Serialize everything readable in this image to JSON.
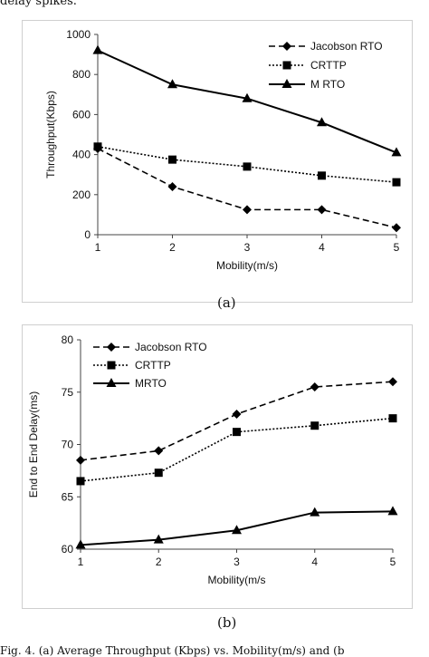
{
  "page": {
    "top_text": "delay spikes.",
    "figure_a_label": "(a)",
    "figure_b_label": "(b)",
    "caption": "Fig. 4. (a) Average Throughput (Kbps) vs. Mobility(m/s) and (b"
  },
  "chart_data": [
    {
      "type": "line",
      "xlabel": "Mobility(m/s)",
      "ylabel": "Throughput(Kbps)",
      "x": [
        1,
        2,
        3,
        4,
        5
      ],
      "xlim": [
        1,
        5
      ],
      "ylim": [
        0,
        1000
      ],
      "yticks": [
        0,
        200,
        400,
        600,
        800,
        1000
      ],
      "xticks": [
        1,
        2,
        3,
        4,
        5
      ],
      "grid": false,
      "legend_position": "top-right",
      "series": [
        {
          "name": "Jacobson RTO",
          "values": [
            430,
            240,
            125,
            125,
            35
          ],
          "style": "dashed",
          "marker": "diamond",
          "color": "#000000"
        },
        {
          "name": "CRTTP",
          "values": [
            440,
            375,
            340,
            295,
            262
          ],
          "style": "dotted",
          "marker": "square",
          "color": "#000000"
        },
        {
          "name": "M RTO",
          "values": [
            920,
            750,
            680,
            560,
            410
          ],
          "style": "solid",
          "marker": "triangle",
          "color": "#000000"
        }
      ]
    },
    {
      "type": "line",
      "xlabel": "Mobility(m/s",
      "ylabel": "End to End Delay(ms)",
      "x": [
        1,
        2,
        3,
        4,
        5
      ],
      "xlim": [
        1,
        5
      ],
      "ylim": [
        60,
        80
      ],
      "yticks": [
        60,
        65,
        70,
        75,
        80
      ],
      "xticks": [
        1,
        2,
        3,
        4,
        5
      ],
      "grid": false,
      "legend_position": "top-left",
      "series": [
        {
          "name": "Jacobson RTO",
          "values": [
            68.5,
            69.4,
            72.9,
            75.5,
            76.0
          ],
          "style": "dashed",
          "marker": "diamond",
          "color": "#000000"
        },
        {
          "name": "CRTTP",
          "values": [
            66.5,
            67.3,
            71.2,
            71.8,
            72.5
          ],
          "style": "dotted",
          "marker": "square",
          "color": "#000000"
        },
        {
          "name": "MRTO",
          "values": [
            60.4,
            60.9,
            61.8,
            63.5,
            63.6
          ],
          "style": "solid",
          "marker": "triangle",
          "color": "#000000"
        }
      ]
    }
  ]
}
